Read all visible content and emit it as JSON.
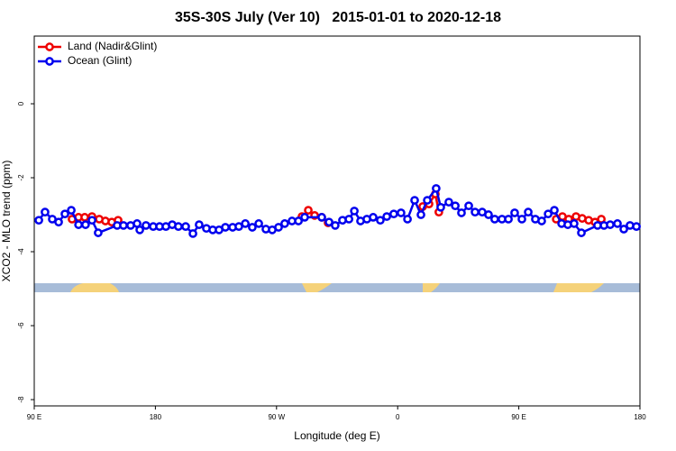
{
  "chart_data": {
    "type": "line",
    "title": "35S-30S July (Ver 10)   2015-01-01 to 2020-12-18",
    "xlabel": "Longitude (deg E)",
    "ylabel": "XCO2 - MLO trend (ppm)",
    "xlim": [
      90,
      540
    ],
    "ylim": [
      -8.17,
      1.83
    ],
    "xticks": [
      {
        "value": 90,
        "label": "90 E"
      },
      180,
      {
        "value": 270,
        "label": "90 W"
      },
      {
        "value": 360,
        "label": "0"
      },
      {
        "value": 450,
        "label": "90 E"
      },
      {
        "value": 540,
        "label": "180"
      }
    ],
    "yticks": [
      0,
      -2,
      -4,
      -6,
      -8
    ],
    "legend": "upper left",
    "series": [
      {
        "name": "Land (Nadir&Glint)",
        "color": "#ee0000",
        "x": [
          118.1,
          122.9,
          127.5,
          132.9,
          138.3,
          142.9,
          147.6,
          152.3,
          null,
          288.9,
          293.6,
          298.3,
          303.6,
          308.3,
          null,
          378.6,
          383.3,
          388,
          390.6,
          null,
          477.8,
          482.4,
          487.1,
          492.5,
          497.1,
          501.9,
          506.6,
          511.3
        ],
        "values": [
          -3.12,
          -3.07,
          -3.07,
          -3.05,
          -3.12,
          -3.17,
          -3.2,
          -3.15,
          null,
          -3.05,
          -2.88,
          -3.02,
          -3.07,
          -3.22,
          null,
          -2.78,
          -2.71,
          -2.44,
          -2.93,
          null,
          -3.12,
          -3.05,
          -3.12,
          -3.05,
          -3.1,
          -3.15,
          -3.2,
          -3.12
        ]
      },
      {
        "name": "Ocean (Glint)",
        "color": "#0000ee",
        "x": [
          93.4,
          98,
          103.4,
          108.1,
          112.8,
          117.5,
          122.9,
          128.1,
          132.9,
          137.5,
          151.6,
          156.3,
          161.6,
          166.4,
          168.4,
          173,
          178.4,
          183.1,
          187.8,
          192.5,
          197.1,
          202.5,
          207.9,
          212.5,
          217.9,
          222.6,
          227.3,
          232,
          237.4,
          242,
          246.8,
          252,
          256.8,
          262.1,
          266.8,
          271.5,
          276.1,
          281.5,
          286.3,
          290.9,
          303.6,
          309,
          313.6,
          319,
          323.8,
          327.8,
          332.4,
          337.1,
          341.8,
          347.1,
          351.9,
          357.1,
          362.5,
          367.3,
          372.6,
          377.3,
          382,
          388.6,
          392,
          398,
          402.8,
          407.4,
          412.8,
          417.5,
          422.8,
          427.5,
          432.1,
          437.5,
          442.3,
          446.9,
          452.3,
          457,
          462.3,
          467,
          471.8,
          476.4,
          481.8,
          486.4,
          491.1,
          496.5,
          508.5,
          513.3,
          517.9,
          523.3,
          528,
          532.6,
          537.4
        ],
        "values": [
          -3.15,
          -2.93,
          -3.12,
          -3.2,
          -2.98,
          -2.88,
          -3.27,
          -3.27,
          -3.15,
          -3.49,
          -3.29,
          -3.29,
          -3.29,
          -3.24,
          -3.41,
          -3.29,
          -3.32,
          -3.32,
          -3.32,
          -3.27,
          -3.32,
          -3.32,
          -3.51,
          -3.27,
          -3.37,
          -3.41,
          -3.41,
          -3.34,
          -3.34,
          -3.32,
          -3.24,
          -3.34,
          -3.24,
          -3.39,
          -3.41,
          -3.34,
          -3.24,
          -3.17,
          -3.17,
          -3.07,
          -3.07,
          -3.2,
          -3.29,
          -3.15,
          -3.12,
          -2.9,
          -3.17,
          -3.12,
          -3.07,
          -3.15,
          -3.05,
          -2.98,
          -2.95,
          -3.12,
          -2.61,
          -3,
          -2.61,
          -2.29,
          -2.8,
          -2.66,
          -2.76,
          -2.95,
          -2.76,
          -2.93,
          -2.93,
          -3,
          -3.12,
          -3.12,
          -3.12,
          -2.95,
          -3.12,
          -2.93,
          -3.12,
          -3.17,
          -2.98,
          -2.88,
          -3.24,
          -3.27,
          -3.24,
          -3.49,
          -3.29,
          -3.29,
          -3.27,
          -3.24,
          -3.39,
          -3.29,
          -3.32
        ]
      }
    ]
  }
}
